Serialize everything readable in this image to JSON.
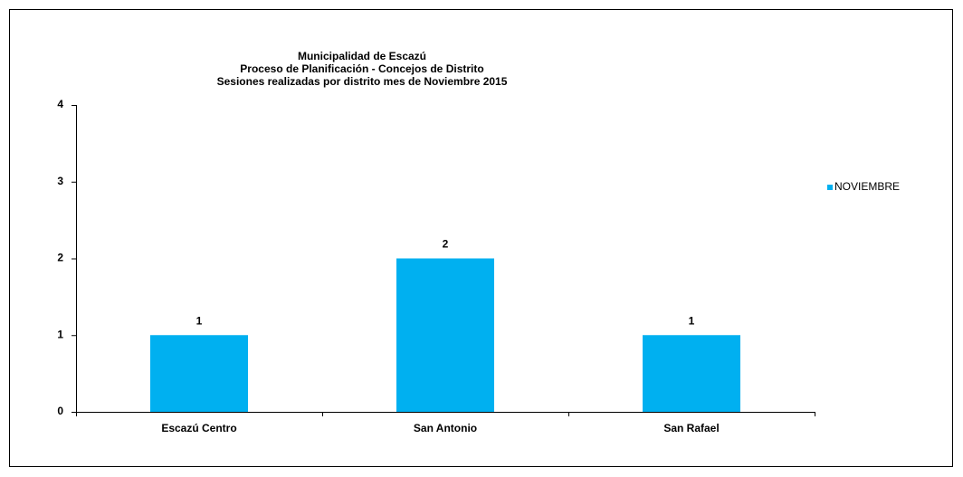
{
  "chart_data": {
    "type": "bar",
    "title": [
      "Municipalidad de Escazú",
      "Proceso de Planificación - Concejos de Distrito",
      "Sesiones realizadas por distrito  mes de Noviembre   2015"
    ],
    "categories": [
      "Escazú Centro",
      "San Antonio",
      "San Rafael"
    ],
    "series": [
      {
        "name": "NOVIEMBRE",
        "color": "#00b0f0",
        "values": [
          1,
          2,
          1
        ]
      }
    ],
    "ylim": [
      0,
      4
    ],
    "yticks": [
      0,
      1,
      2,
      3,
      4
    ],
    "grid": false,
    "legend": "right"
  }
}
